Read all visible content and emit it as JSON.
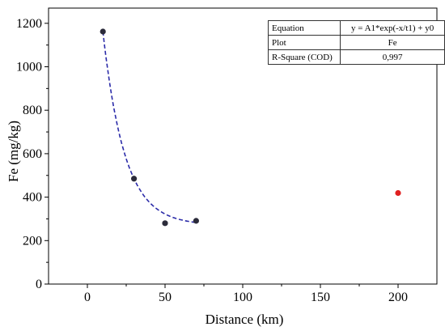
{
  "chart_data": {
    "type": "scatter",
    "xlabel": "Distance (km)",
    "ylabel": "Fe (mg/kg)",
    "xlim": [
      -25,
      225
    ],
    "ylim": [
      0,
      1270
    ],
    "x_ticks": [
      0,
      50,
      100,
      150,
      200
    ],
    "y_ticks": [
      0,
      200,
      400,
      600,
      800,
      1000,
      1200
    ],
    "grid": false,
    "series": [
      {
        "name": "Fe",
        "color": "#2b2b3a",
        "points": [
          {
            "x": 10,
            "y": 1162
          },
          {
            "x": 30,
            "y": 485
          },
          {
            "x": 50,
            "y": 280
          },
          {
            "x": 70,
            "y": 291
          }
        ]
      },
      {
        "color": "#e02020",
        "points": [
          {
            "x": 200,
            "y": 419
          }
        ]
      }
    ],
    "fit": {
      "equation": "y = A1*exp(-x/t1) + y0",
      "color": "#2a2aa8",
      "style": "dashed",
      "x_range": [
        10,
        70
      ]
    },
    "fit_table": [
      {
        "key": "Equation",
        "value": "y = A1*exp(-x/t1) + y0"
      },
      {
        "key": "Plot",
        "value": "Fe"
      },
      {
        "key": "R-Square (COD)",
        "value": "0,997"
      }
    ]
  }
}
